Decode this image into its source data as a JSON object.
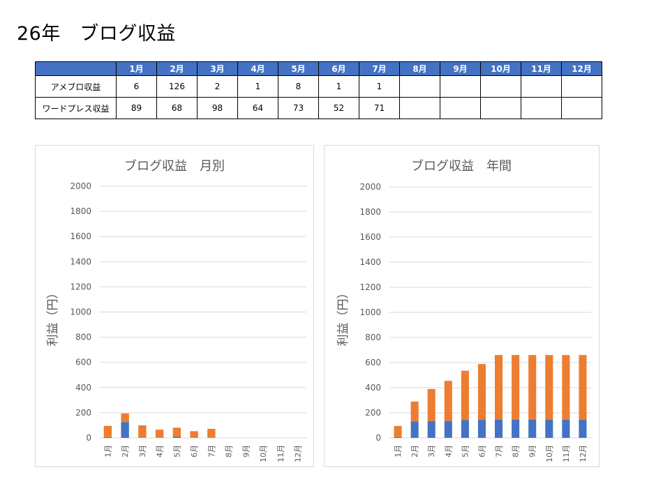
{
  "page": {
    "title": "26年　ブログ収益"
  },
  "table": {
    "months": [
      "1月",
      "2月",
      "3月",
      "4月",
      "5月",
      "6月",
      "7月",
      "8月",
      "9月",
      "10月",
      "11月",
      "12月"
    ],
    "rows": [
      {
        "label": "アメブロ収益",
        "values": [
          "6",
          "126",
          "2",
          "1",
          "8",
          "1",
          "1",
          "",
          "",
          "",
          "",
          ""
        ]
      },
      {
        "label": "ワードプレス収益",
        "values": [
          "89",
          "68",
          "98",
          "64",
          "73",
          "52",
          "71",
          "",
          "",
          "",
          "",
          ""
        ]
      }
    ]
  },
  "chart_data": [
    {
      "type": "bar",
      "stacked": true,
      "title": "ブログ収益　月別",
      "xlabel": "",
      "ylabel": "利益（円）",
      "ylim": [
        0,
        2000
      ],
      "yticks": [
        "0",
        "200",
        "400",
        "600",
        "800",
        "1000",
        "1200",
        "1400",
        "1600",
        "1800",
        "2000"
      ],
      "categories": [
        "1月",
        "2月",
        "3月",
        "4月",
        "5月",
        "6月",
        "7月",
        "8月",
        "9月",
        "10月",
        "11月",
        "12月"
      ],
      "grid": true,
      "series": [
        {
          "values": [
            6,
            126,
            2,
            1,
            8,
            1,
            1,
            0,
            0,
            0,
            0,
            0
          ],
          "color": "#4472c4"
        },
        {
          "values": [
            89,
            68,
            98,
            64,
            73,
            52,
            71,
            0,
            0,
            0,
            0,
            0
          ],
          "color": "#ed7d31"
        }
      ]
    },
    {
      "type": "bar",
      "stacked": true,
      "title": "ブログ収益　年間",
      "xlabel": "",
      "ylabel": "利益（円）",
      "ylim": [
        0,
        2000
      ],
      "yticks": [
        "0",
        "200",
        "400",
        "600",
        "800",
        "1000",
        "1200",
        "1400",
        "1600",
        "1800",
        "2000"
      ],
      "categories": [
        "1月",
        "2月",
        "3月",
        "4月",
        "5月",
        "6月",
        "7月",
        "8月",
        "9月",
        "10月",
        "11月",
        "12月"
      ],
      "grid": true,
      "series": [
        {
          "values": [
            6,
            132,
            134,
            135,
            143,
            144,
            145,
            145,
            145,
            145,
            145,
            145
          ],
          "color": "#4472c4"
        },
        {
          "values": [
            89,
            157,
            255,
            319,
            392,
            444,
            515,
            515,
            515,
            515,
            515,
            515
          ],
          "color": "#ed7d31"
        }
      ]
    }
  ]
}
